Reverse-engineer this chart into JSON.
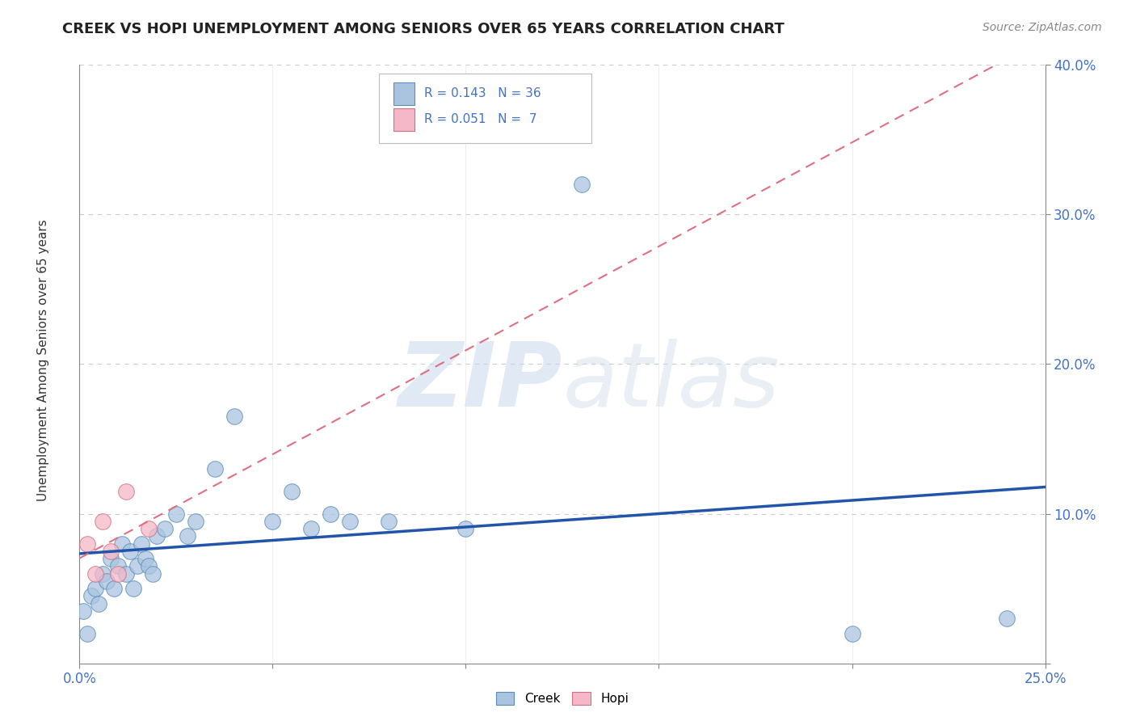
{
  "title": "CREEK VS HOPI UNEMPLOYMENT AMONG SENIORS OVER 65 YEARS CORRELATION CHART",
  "source": "Source: ZipAtlas.com",
  "xlim": [
    0,
    0.25
  ],
  "ylim": [
    0,
    0.4
  ],
  "creek_x": [
    0.001,
    0.002,
    0.003,
    0.004,
    0.005,
    0.006,
    0.007,
    0.008,
    0.009,
    0.01,
    0.011,
    0.012,
    0.013,
    0.014,
    0.015,
    0.016,
    0.017,
    0.018,
    0.019,
    0.02,
    0.022,
    0.025,
    0.028,
    0.03,
    0.035,
    0.04,
    0.05,
    0.055,
    0.06,
    0.065,
    0.07,
    0.08,
    0.1,
    0.13,
    0.2,
    0.24
  ],
  "creek_y": [
    0.035,
    0.02,
    0.045,
    0.05,
    0.04,
    0.06,
    0.055,
    0.07,
    0.05,
    0.065,
    0.08,
    0.06,
    0.075,
    0.05,
    0.065,
    0.08,
    0.07,
    0.065,
    0.06,
    0.085,
    0.09,
    0.1,
    0.085,
    0.095,
    0.13,
    0.165,
    0.095,
    0.115,
    0.09,
    0.1,
    0.095,
    0.095,
    0.09,
    0.32,
    0.02,
    0.03
  ],
  "hopi_x": [
    0.002,
    0.004,
    0.006,
    0.008,
    0.01,
    0.012,
    0.018
  ],
  "hopi_y": [
    0.08,
    0.06,
    0.095,
    0.075,
    0.06,
    0.115,
    0.09
  ],
  "creek_R": 0.143,
  "creek_N": 36,
  "hopi_R": 0.051,
  "hopi_N": 7,
  "creek_color": "#aac4e0",
  "creek_edge_color": "#5b8db8",
  "hopi_color": "#f4b8c8",
  "hopi_edge_color": "#d07080",
  "creek_line_color": "#2255aa",
  "hopi_line_color": "#e07080",
  "watermark_color": "#d8e4f0",
  "background_color": "#ffffff",
  "grid_color": "#cccccc"
}
